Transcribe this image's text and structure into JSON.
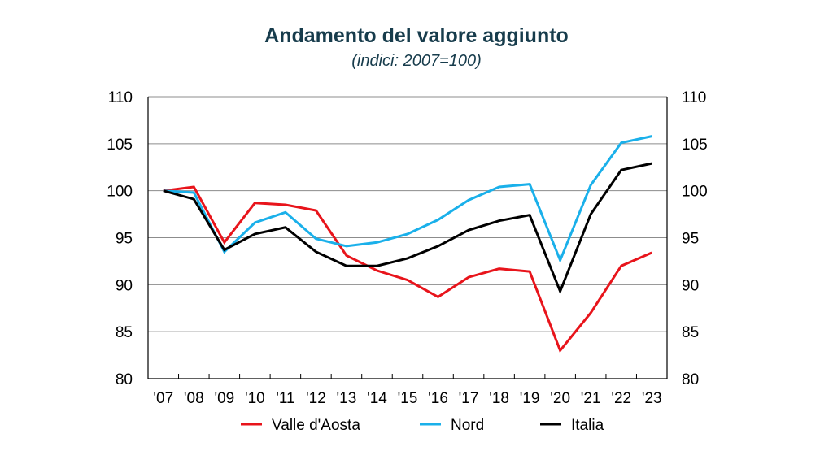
{
  "chart_data": {
    "type": "line",
    "title": "Andamento del valore aggiunto",
    "subtitle": "(indici: 2007=100)",
    "categories": [
      "'07",
      "'08",
      "'09",
      "'10",
      "'11",
      "'12",
      "'13",
      "'14",
      "'15",
      "'16",
      "'17",
      "'18",
      "'19",
      "'20",
      "'21",
      "'22",
      "'23"
    ],
    "ylim": [
      80,
      110
    ],
    "yticks": [
      80,
      85,
      90,
      95,
      100,
      105,
      110
    ],
    "grid": true,
    "legend_position": "bottom",
    "series": [
      {
        "name": "Valle d'Aosta",
        "color": "#e8141b",
        "values": [
          100.0,
          100.4,
          94.5,
          98.7,
          98.5,
          97.9,
          93.1,
          91.5,
          90.5,
          88.7,
          90.8,
          91.7,
          91.4,
          83.0,
          87.0,
          92.0,
          93.4
        ]
      },
      {
        "name": "Nord",
        "color": "#1ab0ea",
        "values": [
          100.0,
          99.8,
          93.5,
          96.6,
          97.7,
          94.9,
          94.1,
          94.5,
          95.4,
          96.9,
          99.0,
          100.4,
          100.7,
          92.6,
          100.6,
          105.1,
          105.8
        ]
      },
      {
        "name": "Italia",
        "color": "#000000",
        "values": [
          100.0,
          99.1,
          93.7,
          95.4,
          96.1,
          93.5,
          92.0,
          92.0,
          92.8,
          94.1,
          95.8,
          96.8,
          97.4,
          89.3,
          97.5,
          102.2,
          102.9
        ]
      }
    ]
  }
}
